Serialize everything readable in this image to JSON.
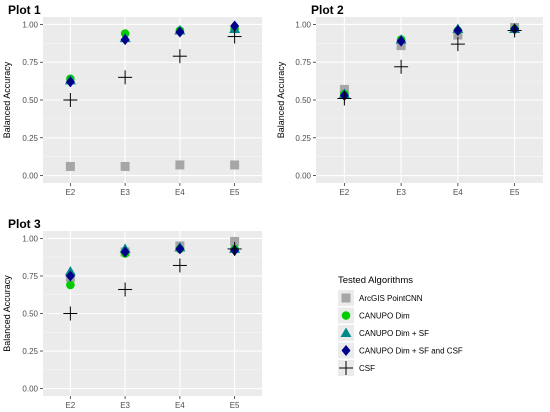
{
  "legend": {
    "title": "Tested Algorithms",
    "placement": "bottom-right"
  },
  "series_style": [
    {
      "name": "ArcGIS PointCNN",
      "color": "#a6a6a6",
      "shape": "square"
    },
    {
      "name": "CANUPO Dim",
      "color": "#00cc00",
      "shape": "circle"
    },
    {
      "name": "CANUPO Dim + SF",
      "color": "#008b8b",
      "shape": "triangle"
    },
    {
      "name": "CANUPO Dim + SF and CSF",
      "color": "#00008b",
      "shape": "diamond"
    },
    {
      "name": "CSF",
      "color": "#000000",
      "shape": "plus"
    }
  ],
  "chart_data": [
    {
      "type": "scatter",
      "title": "Plot 1",
      "xlabel": "",
      "ylabel": "Balanced Accuracy",
      "categories": [
        "E2",
        "E3",
        "E4",
        "E5"
      ],
      "ylim": [
        0,
        1
      ],
      "yticks": [
        "0.00",
        "0.25",
        "0.50",
        "0.75",
        "1.00"
      ],
      "grid": true,
      "series": [
        {
          "name": "ArcGIS PointCNN",
          "values": [
            0.06,
            0.06,
            0.07,
            0.07
          ]
        },
        {
          "name": "CANUPO Dim",
          "values": [
            0.64,
            0.94,
            0.96,
            0.97
          ]
        },
        {
          "name": "CANUPO Dim + SF",
          "values": [
            0.63,
            0.91,
            0.96,
            0.97
          ]
        },
        {
          "name": "CANUPO Dim + SF and CSF",
          "values": [
            0.62,
            0.9,
            0.95,
            0.99
          ]
        },
        {
          "name": "CSF",
          "values": [
            0.5,
            0.65,
            0.79,
            0.92
          ]
        }
      ]
    },
    {
      "type": "scatter",
      "title": "Plot 2",
      "xlabel": "",
      "ylabel": "Balanced Accuracy",
      "categories": [
        "E2",
        "E3",
        "E4",
        "E5"
      ],
      "ylim": [
        0,
        1
      ],
      "yticks": [
        "0.00",
        "0.25",
        "0.50",
        "0.75",
        "1.00"
      ],
      "grid": true,
      "series": [
        {
          "name": "ArcGIS PointCNN",
          "values": [
            0.57,
            0.86,
            0.93,
            0.98
          ]
        },
        {
          "name": "CANUPO Dim",
          "values": [
            0.54,
            0.9,
            0.96,
            0.97
          ]
        },
        {
          "name": "CANUPO Dim + SF",
          "values": [
            0.54,
            0.9,
            0.97,
            0.97
          ]
        },
        {
          "name": "CANUPO Dim + SF and CSF",
          "values": [
            0.53,
            0.89,
            0.96,
            0.97
          ]
        },
        {
          "name": "CSF",
          "values": [
            0.51,
            0.72,
            0.87,
            0.96
          ]
        }
      ]
    },
    {
      "type": "scatter",
      "title": "Plot 3",
      "xlabel": "",
      "ylabel": "Balanced Accuracy",
      "categories": [
        "E2",
        "E3",
        "E4",
        "E5"
      ],
      "ylim": [
        0,
        1
      ],
      "yticks": [
        "0.00",
        "0.25",
        "0.50",
        "0.75",
        "1.00"
      ],
      "grid": true,
      "series": [
        {
          "name": "ArcGIS PointCNN",
          "values": [
            0.74,
            0.91,
            0.95,
            0.98
          ]
        },
        {
          "name": "CANUPO Dim",
          "values": [
            0.69,
            0.9,
            0.93,
            0.93
          ]
        },
        {
          "name": "CANUPO Dim + SF",
          "values": [
            0.78,
            0.93,
            0.94,
            0.93
          ]
        },
        {
          "name": "CANUPO Dim + SF and CSF",
          "values": [
            0.75,
            0.91,
            0.93,
            0.92
          ]
        },
        {
          "name": "CSF",
          "values": [
            0.5,
            0.66,
            0.82,
            0.93
          ]
        }
      ]
    }
  ]
}
